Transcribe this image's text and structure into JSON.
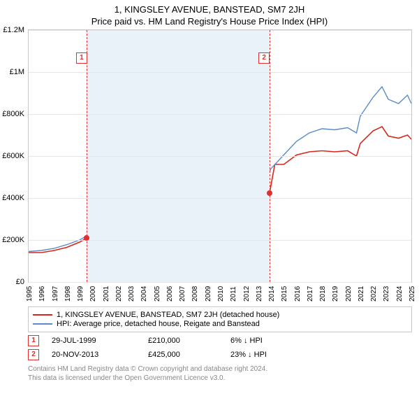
{
  "title": "1, KINGSLEY AVENUE, BANSTEAD, SM7 2JH",
  "subtitle": "Price paid vs. HM Land Registry's House Price Index (HPI)",
  "chart": {
    "type": "line",
    "background_color": "#ffffff",
    "grid_color": "#e6e6e6",
    "border_color": "#c8c8c8",
    "x_start_year": 1995,
    "x_end_year": 2025,
    "xtick_years": [
      1995,
      1996,
      1997,
      1998,
      1999,
      2000,
      2001,
      2002,
      2003,
      2004,
      2005,
      2006,
      2007,
      2008,
      2009,
      2010,
      2011,
      2012,
      2013,
      2014,
      2015,
      2016,
      2017,
      2018,
      2019,
      2020,
      2021,
      2022,
      2023,
      2024,
      2025
    ],
    "y_min": 0,
    "y_max": 1200000,
    "yticks": [
      {
        "v": 0,
        "label": "£0"
      },
      {
        "v": 200000,
        "label": "£200K"
      },
      {
        "v": 400000,
        "label": "£400K"
      },
      {
        "v": 600000,
        "label": "£600K"
      },
      {
        "v": 800000,
        "label": "£800K"
      },
      {
        "v": 1000000,
        "label": "£1M"
      },
      {
        "v": 1200000,
        "label": "£1.2M"
      }
    ],
    "highlight_band": {
      "from_year": 1999.55,
      "to_year": 2013.89,
      "color": "#e9f1f9"
    },
    "vdash_color": "#e03030",
    "marker_box_border": "#e03030",
    "marker_box_text_color": "#e03030",
    "vdash_years": [
      1999.55,
      2013.89
    ],
    "marker_boxes": [
      {
        "n": "1",
        "year": 1999.1,
        "y": 1070000
      },
      {
        "n": "2",
        "year": 2013.4,
        "y": 1070000
      }
    ],
    "dots": [
      {
        "year": 1999.55,
        "v": 210000
      },
      {
        "year": 2013.89,
        "v": 425000
      }
    ],
    "series": [
      {
        "name": "price_paid",
        "color": "#d9261c",
        "width": 1.6,
        "points": [
          [
            1995,
            140000
          ],
          [
            1996,
            140000
          ],
          [
            1997,
            150000
          ],
          [
            1998,
            165000
          ],
          [
            1999,
            190000
          ],
          [
            1999.55,
            210000
          ],
          [
            2000,
            235000
          ],
          [
            2001,
            260000
          ],
          [
            2002,
            300000
          ],
          [
            2003,
            340000
          ],
          [
            2004,
            370000
          ],
          [
            2005,
            380000
          ],
          [
            2006,
            410000
          ],
          [
            2007,
            455000
          ],
          [
            2007.7,
            490000
          ],
          [
            2008.2,
            460000
          ],
          [
            2008.7,
            420000
          ],
          [
            2009.2,
            400000
          ],
          [
            2009.7,
            430000
          ],
          [
            2010,
            450000
          ],
          [
            2010.5,
            440000
          ],
          [
            2011,
            430000
          ],
          [
            2011.5,
            440000
          ],
          [
            2012,
            430000
          ],
          [
            2012.5,
            445000
          ],
          [
            2013,
            450000
          ],
          [
            2013.5,
            430000
          ],
          [
            2013.89,
            425000
          ],
          [
            2014.3,
            560000
          ],
          [
            2015,
            560000
          ],
          [
            2016,
            605000
          ],
          [
            2017,
            620000
          ],
          [
            2018,
            625000
          ],
          [
            2019,
            620000
          ],
          [
            2020,
            625000
          ],
          [
            2020.7,
            600000
          ],
          [
            2021,
            660000
          ],
          [
            2022,
            720000
          ],
          [
            2022.7,
            740000
          ],
          [
            2023.2,
            695000
          ],
          [
            2024,
            685000
          ],
          [
            2024.7,
            700000
          ],
          [
            2025,
            680000
          ]
        ]
      },
      {
        "name": "hpi",
        "color": "#5b8bc9",
        "width": 1.4,
        "points": [
          [
            1995,
            145000
          ],
          [
            1996,
            150000
          ],
          [
            1997,
            160000
          ],
          [
            1998,
            178000
          ],
          [
            1999,
            200000
          ],
          [
            2000,
            235000
          ],
          [
            2001,
            265000
          ],
          [
            2002,
            310000
          ],
          [
            2003,
            355000
          ],
          [
            2004,
            390000
          ],
          [
            2005,
            400000
          ],
          [
            2006,
            430000
          ],
          [
            2007,
            475000
          ],
          [
            2007.7,
            505000
          ],
          [
            2008.2,
            480000
          ],
          [
            2008.7,
            440000
          ],
          [
            2009.2,
            425000
          ],
          [
            2009.7,
            450000
          ],
          [
            2010,
            470000
          ],
          [
            2010.5,
            460000
          ],
          [
            2011,
            450000
          ],
          [
            2011.5,
            460000
          ],
          [
            2012,
            450000
          ],
          [
            2012.5,
            465000
          ],
          [
            2013,
            470000
          ],
          [
            2013.5,
            480000
          ],
          [
            2014,
            540000
          ],
          [
            2015,
            605000
          ],
          [
            2016,
            670000
          ],
          [
            2017,
            710000
          ],
          [
            2018,
            730000
          ],
          [
            2019,
            725000
          ],
          [
            2020,
            735000
          ],
          [
            2020.7,
            710000
          ],
          [
            2021,
            790000
          ],
          [
            2022,
            880000
          ],
          [
            2022.7,
            930000
          ],
          [
            2023.2,
            870000
          ],
          [
            2024,
            850000
          ],
          [
            2024.7,
            890000
          ],
          [
            2025,
            850000
          ]
        ]
      }
    ]
  },
  "legend": {
    "items": [
      {
        "color": "#d9261c",
        "label": "1, KINGSLEY AVENUE, BANSTEAD, SM7 2JH (detached house)"
      },
      {
        "color": "#5b8bc9",
        "label": "HPI: Average price, detached house, Reigate and Banstead"
      }
    ]
  },
  "transactions": [
    {
      "n": "1",
      "date": "29-JUL-1999",
      "price": "£210,000",
      "delta": "6% ↓ HPI"
    },
    {
      "n": "2",
      "date": "20-NOV-2013",
      "price": "£425,000",
      "delta": "23% ↓ HPI"
    }
  ],
  "footer": {
    "line1": "Contains HM Land Registry data © Crown copyright and database right 2024.",
    "line2": "This data is licensed under the Open Government Licence v3.0."
  }
}
